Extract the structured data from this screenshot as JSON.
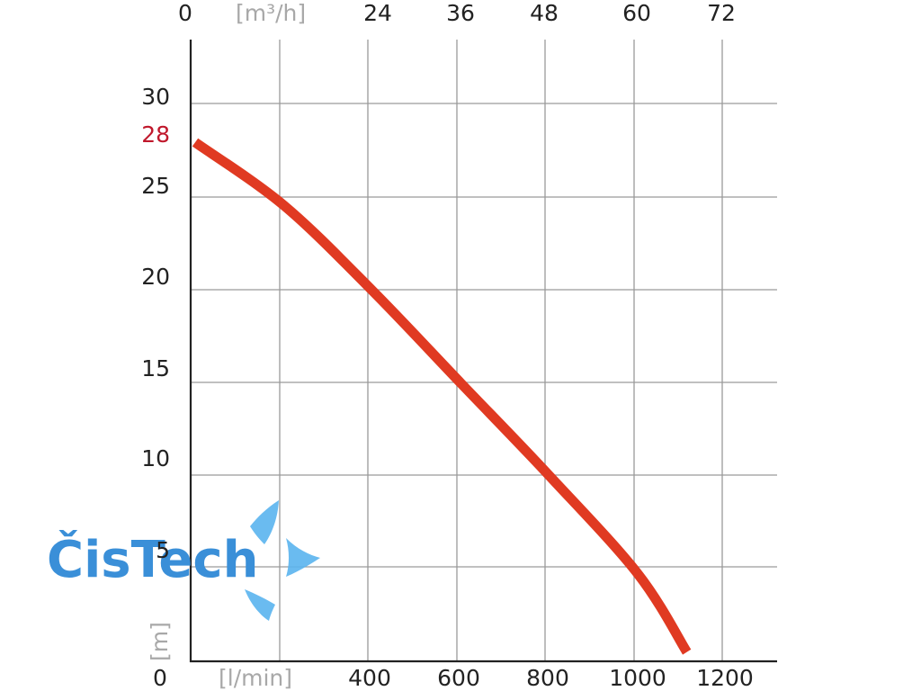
{
  "chart_data": {
    "type": "line",
    "x_bottom": {
      "label": "[l/min]",
      "ticks": [
        "0",
        "400",
        "600",
        "800",
        "1000",
        "1200"
      ],
      "range": [
        0,
        1300
      ]
    },
    "x_top": {
      "label": "[m³/h]",
      "ticks": [
        "0",
        "24",
        "36",
        "48",
        "60",
        "72"
      ]
    },
    "y": {
      "label": "[m]",
      "ticks": [
        "30",
        "28",
        "25",
        "20",
        "15",
        "10",
        "5",
        "0"
      ],
      "highlight_tick": "28",
      "range": [
        0,
        33
      ]
    },
    "series": [
      {
        "color": "#e03a22",
        "x": [
          0,
          200,
          400,
          600,
          800,
          1000,
          1110
        ],
        "y": [
          28,
          24.6,
          20,
          15,
          10,
          4.7,
          0.5
        ]
      }
    ],
    "grid": true,
    "highlight_color": "#c0182c"
  },
  "watermark": {
    "text_c": "Čis",
    "text_t": "Tech",
    "color": "#3a8fd8",
    "accent_color": "#5ab4ee"
  }
}
